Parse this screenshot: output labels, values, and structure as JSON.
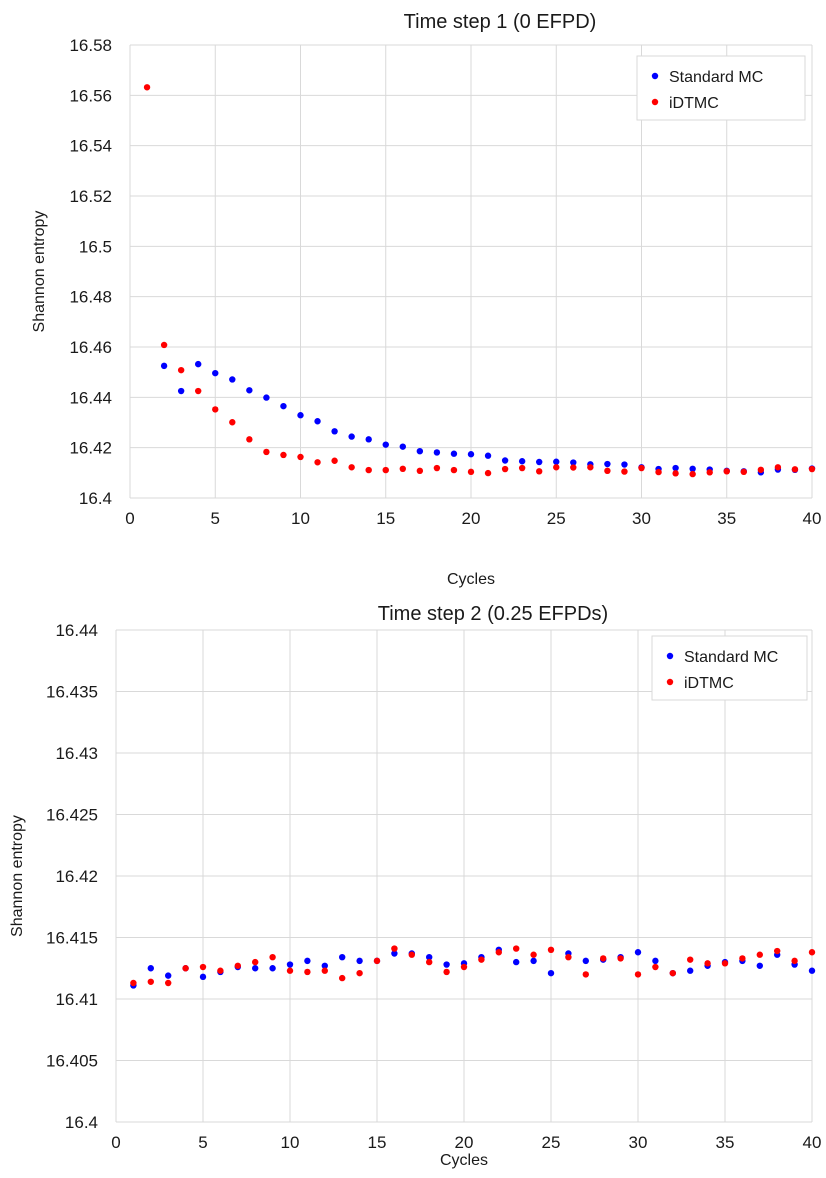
{
  "chart_data": [
    {
      "type": "scatter",
      "title": "Time step 1 (0 EFPD)",
      "xlabel": "Cycles",
      "ylabel": "Shannon entropy",
      "xlim": [
        0,
        40
      ],
      "ylim": [
        16.4,
        16.58
      ],
      "xticks": [
        "0",
        "5",
        "10",
        "15",
        "20",
        "25",
        "30",
        "35",
        "40"
      ],
      "yticks": [
        "16.4",
        "16.42",
        "16.44",
        "16.46",
        "16.48",
        "16.5",
        "16.52",
        "16.54",
        "16.56",
        "16.58"
      ],
      "grid": true,
      "legend_position": "top-right",
      "series": [
        {
          "name": "Standard MC",
          "color": "#0000ff",
          "x": [
            2,
            3,
            4,
            5,
            6,
            7,
            8,
            9,
            10,
            11,
            12,
            13,
            14,
            15,
            16,
            17,
            18,
            19,
            20,
            21,
            22,
            23,
            24,
            25,
            26,
            27,
            28,
            29,
            30,
            31,
            32,
            33,
            34,
            35,
            36,
            37,
            38,
            39,
            40
          ],
          "y": [
            16.4525,
            16.4425,
            16.4532,
            16.4496,
            16.4471,
            16.4428,
            16.4399,
            16.4365,
            16.4329,
            16.4305,
            16.4265,
            16.4244,
            16.4233,
            16.4212,
            16.4204,
            16.4186,
            16.4181,
            16.4176,
            16.4174,
            16.4168,
            16.4149,
            16.4146,
            16.4143,
            16.4144,
            16.4141,
            16.4134,
            16.4135,
            16.4133,
            16.4122,
            16.4115,
            16.4119,
            16.4116,
            16.4113,
            16.4108,
            16.4106,
            16.4102,
            16.4113,
            16.4112,
            16.4117
          ]
        },
        {
          "name": "iDTMC",
          "color": "#ff0000",
          "x": [
            1,
            2,
            3,
            4,
            5,
            6,
            7,
            8,
            9,
            10,
            11,
            12,
            13,
            14,
            15,
            16,
            17,
            18,
            19,
            20,
            21,
            22,
            23,
            24,
            25,
            26,
            27,
            28,
            29,
            30,
            31,
            32,
            33,
            34,
            35,
            36,
            37,
            38,
            39,
            40
          ],
          "y": [
            16.5632,
            16.4608,
            16.4508,
            16.4425,
            16.4352,
            16.4301,
            16.4233,
            16.4183,
            16.4171,
            16.4163,
            16.4142,
            16.4148,
            16.4122,
            16.4111,
            16.4111,
            16.4116,
            16.4108,
            16.4119,
            16.4111,
            16.4104,
            16.4099,
            16.4115,
            16.4119,
            16.4106,
            16.4122,
            16.4121,
            16.4122,
            16.4108,
            16.4105,
            16.4119,
            16.4103,
            16.4098,
            16.4095,
            16.4102,
            16.4106,
            16.4104,
            16.4112,
            16.4122,
            16.4114,
            16.4115
          ]
        }
      ]
    },
    {
      "type": "scatter",
      "title": "Time step 2 (0.25 EFPDs)",
      "xlabel": "Cycles",
      "ylabel": "Shannon entropy",
      "xlim": [
        0,
        40
      ],
      "ylim": [
        16.4,
        16.44
      ],
      "xticks": [
        "0",
        "5",
        "10",
        "15",
        "20",
        "25",
        "30",
        "35",
        "40"
      ],
      "yticks": [
        "16.4",
        "16.405",
        "16.41",
        "16.415",
        "16.42",
        "16.425",
        "16.43",
        "16.435",
        "16.44"
      ],
      "grid": true,
      "legend_position": "top-right",
      "series": [
        {
          "name": "Standard MC",
          "color": "#0000ff",
          "x": [
            1,
            2,
            3,
            4,
            5,
            6,
            7,
            8,
            9,
            10,
            11,
            12,
            13,
            14,
            15,
            16,
            17,
            18,
            19,
            20,
            21,
            22,
            23,
            24,
            25,
            26,
            27,
            28,
            29,
            30,
            31,
            32,
            33,
            34,
            35,
            36,
            37,
            38,
            39,
            40
          ],
          "y": [
            16.4111,
            16.4125,
            16.4119,
            16.4125,
            16.4118,
            16.4122,
            16.4126,
            16.4125,
            16.4125,
            16.4128,
            16.4131,
            16.4127,
            16.4134,
            16.4131,
            16.4131,
            16.4137,
            16.4137,
            16.4134,
            16.4128,
            16.4129,
            16.4134,
            16.414,
            16.413,
            16.4131,
            16.4121,
            16.4137,
            16.4131,
            16.4132,
            16.4134,
            16.4138,
            16.4131,
            16.4121,
            16.4123,
            16.4127,
            16.413,
            16.4131,
            16.4127,
            16.4136,
            16.4128,
            16.4123
          ]
        },
        {
          "name": "iDTMC",
          "color": "#ff0000",
          "x": [
            1,
            2,
            3,
            4,
            5,
            6,
            7,
            8,
            9,
            10,
            11,
            12,
            13,
            14,
            15,
            16,
            17,
            18,
            19,
            20,
            21,
            22,
            23,
            24,
            25,
            26,
            27,
            28,
            29,
            30,
            31,
            32,
            33,
            34,
            35,
            36,
            37,
            38,
            39,
            40
          ],
          "y": [
            16.4113,
            16.4114,
            16.4113,
            16.4125,
            16.4126,
            16.4123,
            16.4127,
            16.413,
            16.4134,
            16.4123,
            16.4122,
            16.4123,
            16.4117,
            16.4121,
            16.4131,
            16.4141,
            16.4136,
            16.413,
            16.4122,
            16.4126,
            16.4132,
            16.4138,
            16.4141,
            16.4136,
            16.414,
            16.4134,
            16.412,
            16.4133,
            16.4133,
            16.412,
            16.4126,
            16.4121,
            16.4132,
            16.4129,
            16.4129,
            16.4133,
            16.4136,
            16.4139,
            16.4131,
            16.4138
          ]
        }
      ]
    }
  ]
}
